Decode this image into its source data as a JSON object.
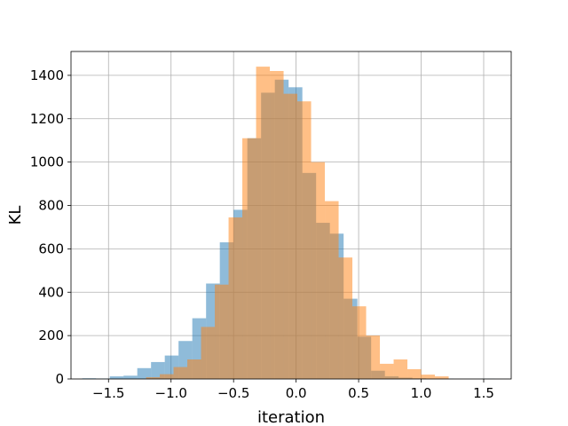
{
  "chart_data": {
    "type": "bar",
    "subtype": "overlaid-histogram",
    "xlabel": "iteration",
    "ylabel": "KL",
    "xlim": [
      -1.8,
      1.72
    ],
    "ylim": [
      0,
      1510
    ],
    "xticks": [
      -1.5,
      -1.0,
      -0.5,
      0.0,
      0.5,
      1.0,
      1.5
    ],
    "xtick_labels": [
      "−1.5",
      "−1.0",
      "−0.5",
      "0.0",
      "0.5",
      "1.0",
      "1.5"
    ],
    "yticks": [
      0,
      200,
      400,
      600,
      800,
      1000,
      1200,
      1400
    ],
    "ytick_labels": [
      "0",
      "200",
      "400",
      "600",
      "800",
      "1000",
      "1200",
      "1400"
    ],
    "grid": true,
    "series": [
      {
        "color": "#1f77b4",
        "opacity": 0.5,
        "bin_edges": [
          -1.71,
          -1.6,
          -1.49,
          -1.38,
          -1.27,
          -1.16,
          -1.05,
          -0.94,
          -0.83,
          -0.72,
          -0.61,
          -0.5,
          -0.39,
          -0.28,
          -0.17,
          -0.06,
          0.05,
          0.16,
          0.27,
          0.38,
          0.49,
          0.6,
          0.71,
          0.82,
          0.93,
          1.04,
          1.15,
          1.26,
          1.37,
          1.48,
          1.59
        ],
        "counts": [
          3,
          2,
          12,
          15,
          50,
          78,
          108,
          175,
          280,
          440,
          630,
          780,
          1110,
          1320,
          1380,
          1345,
          950,
          720,
          670,
          370,
          195,
          38,
          12,
          6,
          3,
          1,
          1,
          0,
          0,
          1
        ]
      },
      {
        "color": "#ff7f0e",
        "opacity": 0.5,
        "bin_edges": [
          -1.2,
          -1.09,
          -0.98,
          -0.87,
          -0.76,
          -0.65,
          -0.54,
          -0.43,
          -0.32,
          -0.21,
          -0.1,
          0.01,
          0.12,
          0.23,
          0.34,
          0.45,
          0.56,
          0.67,
          0.78,
          0.89,
          1.0,
          1.11,
          1.22,
          1.33
        ],
        "counts": [
          8,
          22,
          55,
          90,
          240,
          435,
          745,
          1110,
          1440,
          1420,
          1315,
          1280,
          1000,
          820,
          560,
          335,
          200,
          70,
          90,
          45,
          20,
          12,
          0
        ]
      }
    ]
  }
}
